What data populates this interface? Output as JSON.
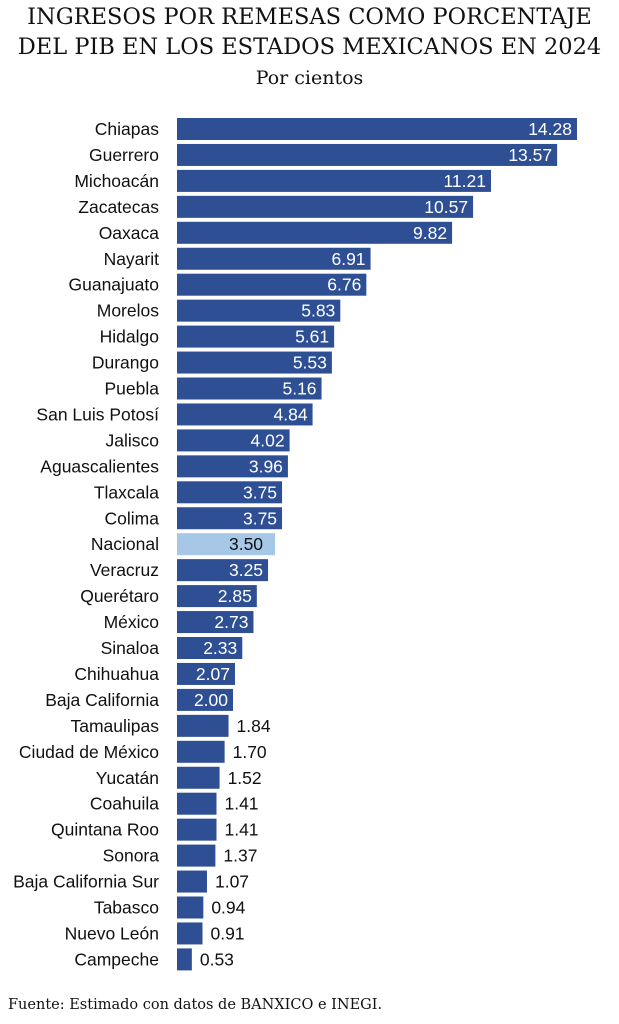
{
  "chart_data": {
    "type": "bar",
    "orientation": "horizontal",
    "title_line1": "INGRESOS POR REMESAS COMO PORCENTAJE",
    "title_line2": "DEL PIB EN LOS ESTADOS MEXICANOS EN 2024",
    "subtitle": "Por cientos",
    "source": "Fuente: Estimado con datos de BANXICO e INEGI.",
    "xlim": [
      0,
      14.28
    ],
    "colors": {
      "bar": "#2e4f94",
      "highlight": "#a7c7e7",
      "label_inside": "#ffffff",
      "label_outside": "#111111",
      "label_highlight": "#111111"
    },
    "highlight_category": "Nacional",
    "categories": [
      "Chiapas",
      "Guerrero",
      "Michoacán",
      "Zacatecas",
      "Oaxaca",
      "Nayarit",
      "Guanajuato",
      "Morelos",
      "Hidalgo",
      "Durango",
      "Puebla",
      "San Luis Potosí",
      "Jalisco",
      "Aguascalientes",
      "Tlaxcala",
      "Colima",
      "Nacional",
      "Veracruz",
      "Querétaro",
      "México",
      "Sinaloa",
      "Chihuahua",
      "Baja California",
      "Tamaulipas",
      "Ciudad de México",
      "Yucatán",
      "Coahuila",
      "Quintana Roo",
      "Sonora",
      "Baja California Sur",
      "Tabasco",
      "Nuevo León",
      "Campeche"
    ],
    "values": [
      14.28,
      13.57,
      11.21,
      10.57,
      9.82,
      6.91,
      6.76,
      5.83,
      5.61,
      5.53,
      5.16,
      4.84,
      4.02,
      3.96,
      3.75,
      3.75,
      3.5,
      3.25,
      2.85,
      2.73,
      2.33,
      2.07,
      2.0,
      1.84,
      1.7,
      1.52,
      1.41,
      1.41,
      1.37,
      1.07,
      0.94,
      0.91,
      0.53
    ],
    "value_labels": [
      "14.28",
      "13.57",
      "11.21",
      "10.57",
      "9.82",
      "6.91",
      "6.76",
      "5.83",
      "5.61",
      "5.53",
      "5.16",
      "4.84",
      "4.02",
      "3.96",
      "3.75",
      "3.75",
      "3.50",
      "3.25",
      "2.85",
      "2.73",
      "2.33",
      "2.07",
      "2.00",
      "1.84",
      "1.70",
      "1.52",
      "1.41",
      "1.41",
      "1.37",
      "1.07",
      "0.94",
      "0.91",
      "0.53"
    ]
  }
}
